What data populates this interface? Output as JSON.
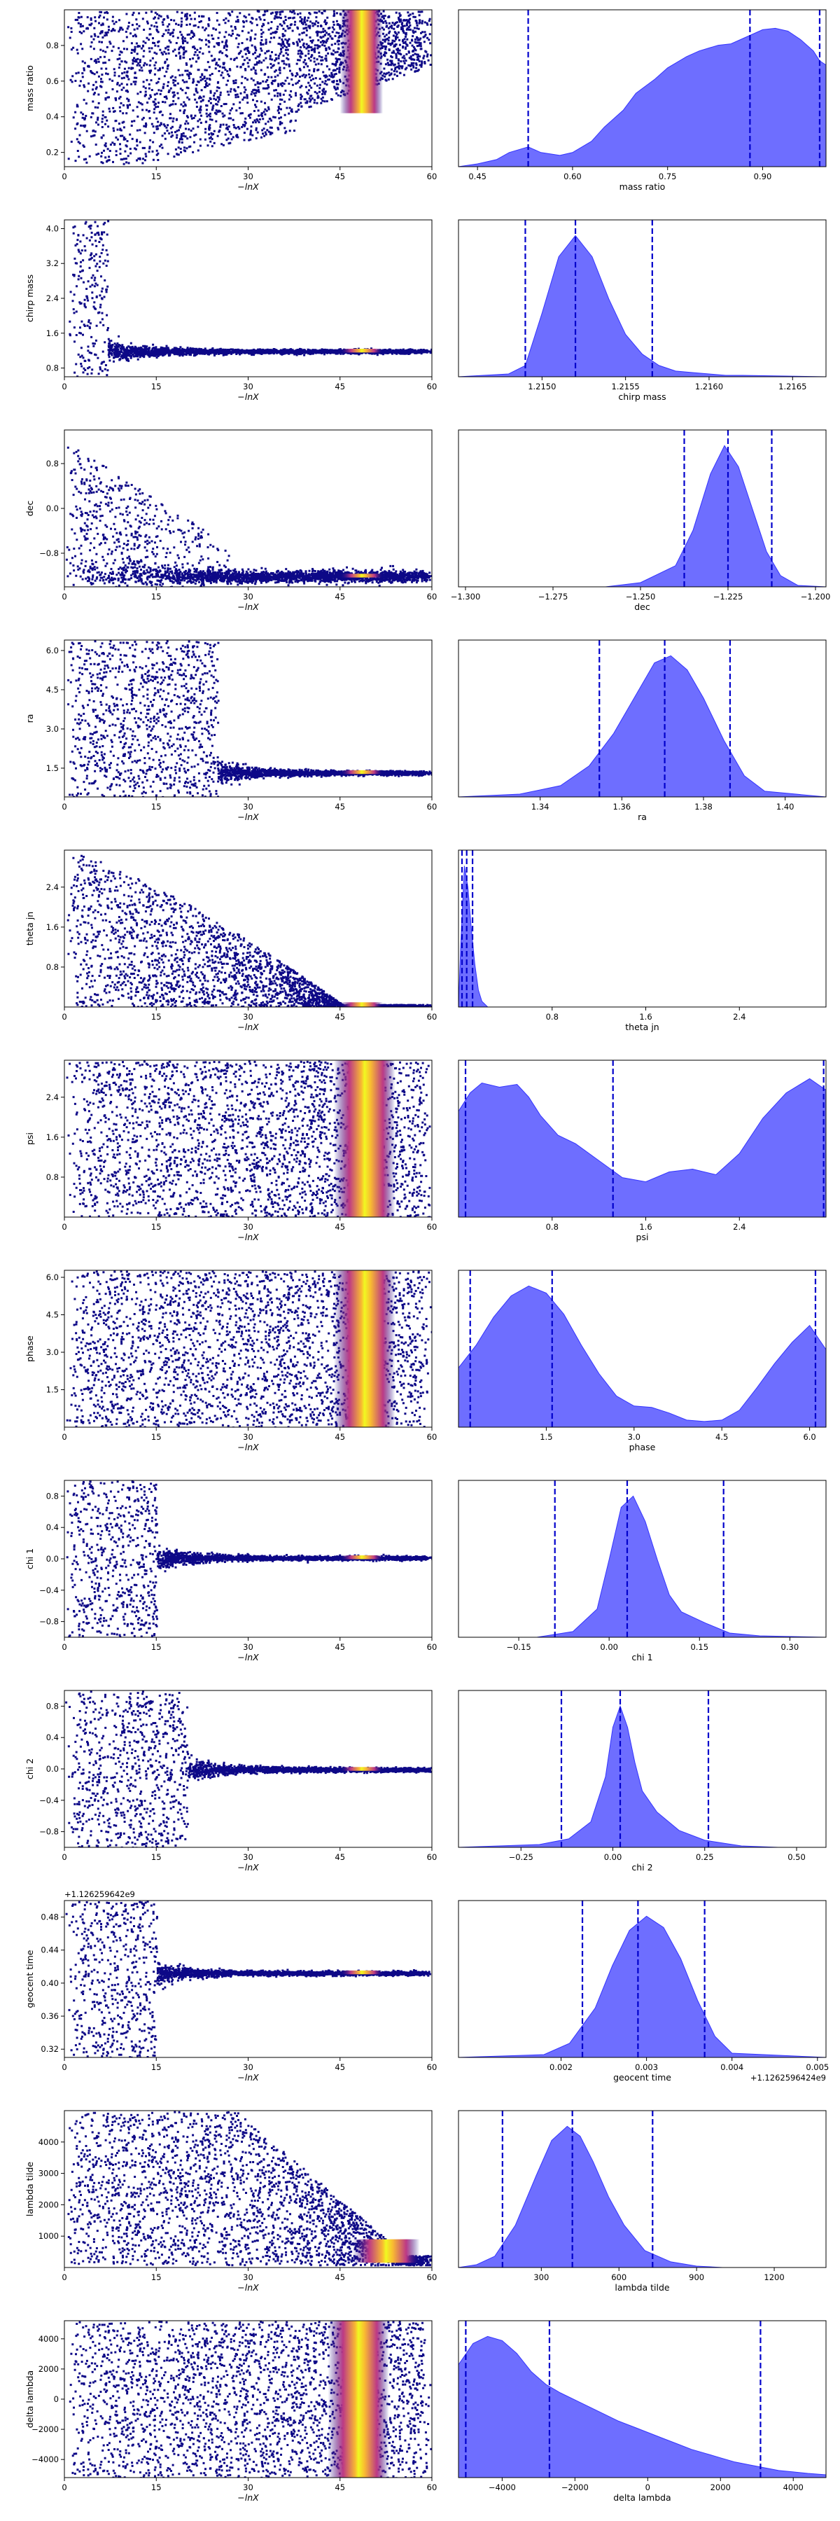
{
  "figure": {
    "xlabel_trace": "−lnX",
    "trace_xticks": [
      0,
      15,
      30,
      45,
      60
    ],
    "trace_xlim": [
      0,
      60
    ]
  },
  "colors": {
    "trace_base": "#0d0887",
    "trace_hot": [
      "#0d0887",
      "#6a00a8",
      "#b12a90",
      "#e16462",
      "#fca636",
      "#f0f921"
    ],
    "kde_fill": "#6666ff",
    "kde_edge": "#3333ff",
    "quantile_line": "#0000cc"
  },
  "chart_data": [
    {
      "type": "area",
      "param": "mass ratio",
      "ylabel": "mass ratio",
      "xlabel": "mass ratio",
      "trace": {
        "ylim": [
          0.12,
          1.0
        ],
        "yticks": [
          "0.2",
          "0.4",
          "0.6",
          "0.8"
        ],
        "ytick_values": [
          0.2,
          0.4,
          0.6,
          0.8
        ],
        "hot_band": [
          45,
          52
        ],
        "shape": "wedge_q"
      },
      "posterior": {
        "xlim": [
          0.42,
          1.0
        ],
        "xticks": [
          "0.45",
          "0.60",
          "0.75",
          "0.90"
        ],
        "xtick_values": [
          0.45,
          0.6,
          0.75,
          0.9
        ],
        "x": [
          0.42,
          0.45,
          0.48,
          0.5,
          0.53,
          0.55,
          0.58,
          0.6,
          0.63,
          0.65,
          0.68,
          0.7,
          0.73,
          0.75,
          0.78,
          0.8,
          0.83,
          0.85,
          0.88,
          0.9,
          0.92,
          0.94,
          0.96,
          0.98,
          0.99,
          1.0
        ],
        "density": [
          0.0,
          0.02,
          0.05,
          0.1,
          0.14,
          0.1,
          0.08,
          0.1,
          0.18,
          0.28,
          0.4,
          0.52,
          0.62,
          0.7,
          0.78,
          0.82,
          0.86,
          0.87,
          0.93,
          0.97,
          0.98,
          0.96,
          0.9,
          0.82,
          0.75,
          0.72
        ],
        "quantiles": [
          0.53,
          0.88,
          0.99
        ]
      }
    },
    {
      "type": "area",
      "param": "chirp mass",
      "ylabel": "chirp mass",
      "xlabel": "chirp mass",
      "trace": {
        "ylim": [
          0.6,
          4.2
        ],
        "yticks": [
          "0.8",
          "1.6",
          "2.4",
          "3.2",
          "4.0"
        ],
        "ytick_values": [
          0.8,
          1.6,
          2.4,
          3.2,
          4.0
        ],
        "hot_band": [
          45,
          52
        ],
        "shape": "converge_line",
        "converge_y": 1.2,
        "start_width": 7
      },
      "posterior": {
        "xlim": [
          1.2145,
          1.2167
        ],
        "xticks": [
          "1.2150",
          "1.2155",
          "1.2160",
          "1.2165"
        ],
        "xtick_values": [
          1.215,
          1.2155,
          1.216,
          1.2165
        ],
        "x": [
          1.2145,
          1.2148,
          1.2149,
          1.215,
          1.2151,
          1.2152,
          1.2153,
          1.2154,
          1.2155,
          1.2156,
          1.2157,
          1.2158,
          1.2159,
          1.216,
          1.2161,
          1.2162,
          1.2167
        ],
        "density": [
          0.0,
          0.02,
          0.08,
          0.45,
          0.85,
          1.0,
          0.85,
          0.55,
          0.3,
          0.16,
          0.08,
          0.04,
          0.03,
          0.02,
          0.01,
          0.01,
          0.0
        ],
        "quantiles": [
          1.2149,
          1.2152,
          1.21566
        ]
      }
    },
    {
      "type": "area",
      "param": "dec",
      "ylabel": "dec",
      "xlabel": "dec",
      "trace": {
        "ylim": [
          -1.4,
          1.4
        ],
        "yticks": [
          "−0.8",
          "0.0",
          "0.8"
        ],
        "ytick_values": [
          -0.8,
          0.0,
          0.8
        ],
        "hot_band": [
          45,
          52
        ],
        "shape": "converge_bottom",
        "converge_y": -1.2
      },
      "posterior": {
        "xlim": [
          -1.302,
          -1.197
        ],
        "xticks": [
          "−1.300",
          "−1.275",
          "−1.250",
          "−1.225",
          "−1.200"
        ],
        "xtick_values": [
          -1.3,
          -1.275,
          -1.25,
          -1.225,
          -1.2
        ],
        "x": [
          -1.302,
          -1.26,
          -1.25,
          -1.24,
          -1.235,
          -1.23,
          -1.226,
          -1.222,
          -1.218,
          -1.214,
          -1.21,
          -1.205,
          -1.197
        ],
        "density": [
          0.0,
          0.0,
          0.03,
          0.15,
          0.4,
          0.8,
          1.0,
          0.85,
          0.55,
          0.25,
          0.08,
          0.01,
          0.0
        ],
        "quantiles": [
          -1.2375,
          -1.225,
          -1.2125
        ]
      }
    },
    {
      "type": "area",
      "param": "ra",
      "ylabel": "ra",
      "xlabel": "ra",
      "trace": {
        "ylim": [
          0.4,
          6.4
        ],
        "yticks": [
          "1.5",
          "3.0",
          "4.5",
          "6.0"
        ],
        "ytick_values": [
          1.5,
          3.0,
          4.5,
          6.0
        ],
        "hot_band": [
          45,
          52
        ],
        "shape": "converge_line",
        "converge_y": 1.35,
        "start_width": 25
      },
      "posterior": {
        "xlim": [
          1.32,
          1.41
        ],
        "xticks": [
          "1.34",
          "1.36",
          "1.38",
          "1.40"
        ],
        "xtick_values": [
          1.34,
          1.36,
          1.38,
          1.4
        ],
        "x": [
          1.32,
          1.335,
          1.345,
          1.352,
          1.358,
          1.364,
          1.368,
          1.372,
          1.376,
          1.38,
          1.385,
          1.39,
          1.395,
          1.41
        ],
        "density": [
          0.0,
          0.02,
          0.08,
          0.22,
          0.45,
          0.75,
          0.95,
          1.0,
          0.9,
          0.7,
          0.4,
          0.15,
          0.04,
          0.0
        ],
        "quantiles": [
          1.3545,
          1.3705,
          1.3865
        ]
      }
    },
    {
      "type": "area",
      "param": "theta jn",
      "ylabel": "theta jn",
      "xlabel": "theta jn",
      "trace": {
        "ylim": [
          0.0,
          3.14
        ],
        "yticks": [
          "0.8",
          "1.6",
          "2.4"
        ],
        "ytick_values": [
          0.8,
          1.6,
          2.4
        ],
        "hot_band": [
          45,
          52
        ],
        "shape": "cone_bottom"
      },
      "posterior": {
        "xlim": [
          0.0,
          3.14
        ],
        "xticks": [
          "0.8",
          "1.6",
          "2.4"
        ],
        "xtick_values": [
          0.8,
          1.6,
          2.4
        ],
        "x": [
          0.0,
          0.02,
          0.05,
          0.08,
          0.11,
          0.14,
          0.17,
          0.2,
          0.25,
          3.14
        ],
        "density": [
          0.0,
          0.45,
          1.0,
          0.85,
          0.55,
          0.3,
          0.12,
          0.04,
          0.0,
          0.0
        ],
        "quantiles": [
          0.03,
          0.07,
          0.12
        ]
      }
    },
    {
      "type": "area",
      "param": "psi",
      "ylabel": "psi",
      "xlabel": "psi",
      "trace": {
        "ylim": [
          0.0,
          3.14
        ],
        "yticks": [
          "0.8",
          "1.6",
          "2.4"
        ],
        "ytick_values": [
          0.8,
          1.6,
          2.4
        ],
        "hot_band": [
          44,
          54
        ],
        "shape": "uniform"
      },
      "posterior": {
        "xlim": [
          0.0,
          3.14
        ],
        "xticks": [
          "0.8",
          "1.6",
          "2.4"
        ],
        "xtick_values": [
          0.8,
          1.6,
          2.4
        ],
        "x": [
          0.0,
          0.1,
          0.2,
          0.35,
          0.5,
          0.6,
          0.7,
          0.85,
          1.0,
          1.2,
          1.4,
          1.6,
          1.8,
          2.0,
          2.2,
          2.4,
          2.6,
          2.8,
          3.0,
          3.14
        ],
        "density": [
          0.75,
          0.88,
          0.95,
          0.92,
          0.94,
          0.85,
          0.72,
          0.58,
          0.52,
          0.4,
          0.28,
          0.25,
          0.32,
          0.34,
          0.3,
          0.45,
          0.7,
          0.88,
          0.98,
          0.9
        ],
        "quantiles": [
          0.06,
          1.32,
          3.12
        ]
      }
    },
    {
      "type": "area",
      "param": "phase",
      "ylabel": "phase",
      "xlabel": "phase",
      "trace": {
        "ylim": [
          0.0,
          6.28
        ],
        "yticks": [
          "1.5",
          "3.0",
          "4.5",
          "6.0"
        ],
        "ytick_values": [
          1.5,
          3.0,
          4.5,
          6.0
        ],
        "hot_band": [
          44,
          54
        ],
        "shape": "uniform"
      },
      "posterior": {
        "xlim": [
          0.0,
          6.28
        ],
        "xticks": [
          "1.5",
          "3.0",
          "4.5",
          "6.0"
        ],
        "xtick_values": [
          1.5,
          3.0,
          4.5,
          6.0
        ],
        "x": [
          0.0,
          0.3,
          0.6,
          0.9,
          1.2,
          1.5,
          1.8,
          2.1,
          2.4,
          2.7,
          3.0,
          3.3,
          3.6,
          3.9,
          4.2,
          4.5,
          4.8,
          5.1,
          5.4,
          5.7,
          6.0,
          6.28
        ],
        "density": [
          0.42,
          0.58,
          0.78,
          0.93,
          1.0,
          0.95,
          0.8,
          0.58,
          0.38,
          0.22,
          0.15,
          0.14,
          0.1,
          0.05,
          0.04,
          0.05,
          0.12,
          0.28,
          0.45,
          0.6,
          0.72,
          0.55
        ],
        "quantiles": [
          0.2,
          1.6,
          6.1
        ]
      }
    },
    {
      "type": "area",
      "param": "chi 1",
      "ylabel": "chi 1",
      "xlabel": "chi 1",
      "trace": {
        "ylim": [
          -1.0,
          1.0
        ],
        "yticks": [
          "−0.8",
          "−0.4",
          "0.0",
          "0.4",
          "0.8"
        ],
        "ytick_values": [
          -0.8,
          -0.4,
          0.0,
          0.4,
          0.8
        ],
        "hot_band": [
          45,
          52
        ],
        "shape": "converge_line",
        "converge_y": 0.02,
        "start_width": 15
      },
      "posterior": {
        "xlim": [
          -0.25,
          0.36
        ],
        "xticks": [
          "−0.15",
          "0.00",
          "0.15",
          "0.30"
        ],
        "xtick_values": [
          -0.15,
          0.0,
          0.15,
          0.3
        ],
        "x": [
          -0.25,
          -0.12,
          -0.06,
          -0.02,
          0.0,
          0.02,
          0.04,
          0.06,
          0.08,
          0.1,
          0.12,
          0.14,
          0.16,
          0.2,
          0.25,
          0.36
        ],
        "density": [
          0.0,
          0.0,
          0.04,
          0.2,
          0.55,
          0.92,
          1.0,
          0.82,
          0.55,
          0.3,
          0.18,
          0.14,
          0.1,
          0.03,
          0.01,
          0.0
        ],
        "quantiles": [
          -0.09,
          0.03,
          0.19
        ]
      }
    },
    {
      "type": "area",
      "param": "chi 2",
      "ylabel": "chi 2",
      "xlabel": "chi 2",
      "trace": {
        "ylim": [
          -1.0,
          1.0
        ],
        "yticks": [
          "−0.8",
          "−0.4",
          "0.0",
          "0.4",
          "0.8"
        ],
        "ytick_values": [
          -0.8,
          -0.4,
          0.0,
          0.4,
          0.8
        ],
        "hot_band": [
          45,
          52
        ],
        "shape": "converge_line",
        "converge_y": 0.0,
        "start_width": 20
      },
      "posterior": {
        "xlim": [
          -0.42,
          0.58
        ],
        "xticks": [
          "−0.25",
          "0.00",
          "0.25",
          "0.50"
        ],
        "xtick_values": [
          -0.25,
          0.0,
          0.25,
          0.5
        ],
        "x": [
          -0.42,
          -0.2,
          -0.12,
          -0.06,
          -0.02,
          0.0,
          0.02,
          0.04,
          0.06,
          0.08,
          0.12,
          0.18,
          0.25,
          0.35,
          0.45,
          0.58
        ],
        "density": [
          0.0,
          0.02,
          0.06,
          0.18,
          0.5,
          0.85,
          1.0,
          0.85,
          0.6,
          0.4,
          0.25,
          0.12,
          0.05,
          0.01,
          0.0,
          0.0
        ],
        "quantiles": [
          -0.14,
          0.02,
          0.26
        ]
      }
    },
    {
      "type": "area",
      "param": "geocent time",
      "ylabel": "geocent time",
      "xlabel": "geocent time",
      "trace": {
        "ylim": [
          0.31,
          0.5
        ],
        "yticks": [
          "0.32",
          "0.36",
          "0.40",
          "0.44",
          "0.48"
        ],
        "ytick_values": [
          0.32,
          0.36,
          0.4,
          0.44,
          0.48
        ],
        "hot_band": [
          45,
          52
        ],
        "shape": "converge_line",
        "converge_y": 0.413,
        "start_width": 15,
        "offset_text": "+1.126259642e9"
      },
      "posterior": {
        "xlim": [
          0.0008,
          0.0051
        ],
        "xticks": [
          "0.002",
          "0.003",
          "0.004",
          "0.005"
        ],
        "xtick_values": [
          0.002,
          0.003,
          0.004,
          0.005
        ],
        "offset_text": "+1.1262596424e9",
        "x": [
          0.0008,
          0.0018,
          0.0021,
          0.0024,
          0.0026,
          0.0028,
          0.003,
          0.0032,
          0.0034,
          0.0036,
          0.0038,
          0.004,
          0.0051
        ],
        "density": [
          0.0,
          0.02,
          0.1,
          0.35,
          0.65,
          0.9,
          1.0,
          0.92,
          0.7,
          0.4,
          0.15,
          0.03,
          0.0
        ],
        "quantiles": [
          0.00225,
          0.0029,
          0.00368
        ]
      }
    },
    {
      "type": "area",
      "param": "lambda tilde",
      "ylabel": "lambda tilde",
      "xlabel": "lambda tilde",
      "trace": {
        "ylim": [
          0,
          5000
        ],
        "yticks": [
          "1000",
          "2000",
          "3000",
          "4000"
        ],
        "ytick_values": [
          1000,
          2000,
          3000,
          4000
        ],
        "hot_band": [
          47,
          58
        ],
        "shape": "decay_bottom",
        "converge_y": 400
      },
      "posterior": {
        "xlim": [
          -20,
          1400
        ],
        "xticks": [
          "300",
          "600",
          "900",
          "1200"
        ],
        "xtick_values": [
          300,
          600,
          900,
          1200
        ],
        "x": [
          -20,
          50,
          120,
          200,
          280,
          340,
          400,
          450,
          500,
          560,
          620,
          700,
          800,
          900,
          1000,
          1100,
          1400
        ],
        "density": [
          0.0,
          0.02,
          0.08,
          0.3,
          0.65,
          0.9,
          1.0,
          0.93,
          0.75,
          0.5,
          0.3,
          0.12,
          0.04,
          0.01,
          0.0,
          0.0,
          0.0
        ],
        "quantiles": [
          150,
          420,
          730
        ]
      }
    },
    {
      "type": "area",
      "param": "delta lambda",
      "ylabel": "delta lambda",
      "xlabel": "delta lambda",
      "trace": {
        "ylim": [
          -5200,
          5200
        ],
        "yticks": [
          "−4000",
          "−2000",
          "0",
          "2000",
          "4000"
        ],
        "ytick_values": [
          -4000,
          -2000,
          0,
          2000,
          4000
        ],
        "hot_band": [
          43,
          53
        ],
        "shape": "uniform"
      },
      "posterior": {
        "xlim": [
          -5200,
          4900
        ],
        "xticks": [
          "−4000",
          "−2000",
          "0",
          "2000",
          "4000"
        ],
        "xtick_values": [
          -4000,
          -2000,
          0,
          2000,
          4000
        ],
        "x": [
          -5200,
          -4800,
          -4400,
          -4000,
          -3600,
          -3200,
          -2800,
          -2400,
          -2000,
          -1600,
          -1200,
          -800,
          -400,
          0,
          400,
          800,
          1200,
          1600,
          2000,
          2400,
          2800,
          3200,
          3600,
          4000,
          4400,
          4900
        ],
        "density": [
          0.8,
          0.95,
          1.0,
          0.97,
          0.88,
          0.75,
          0.66,
          0.6,
          0.55,
          0.5,
          0.45,
          0.4,
          0.36,
          0.32,
          0.28,
          0.24,
          0.2,
          0.17,
          0.14,
          0.11,
          0.09,
          0.07,
          0.05,
          0.04,
          0.03,
          0.02
        ],
        "quantiles": [
          -5000,
          -2700,
          3100
        ]
      }
    }
  ]
}
